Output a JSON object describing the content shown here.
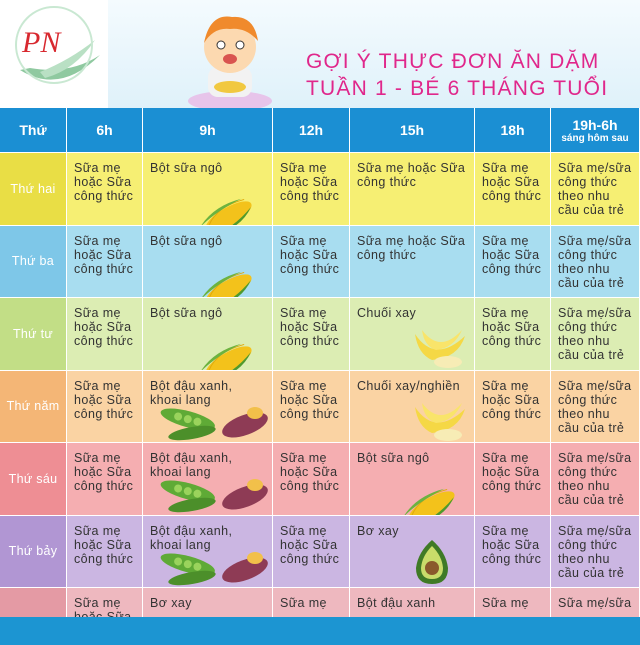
{
  "header": {
    "logo": "PN",
    "title_line1": "GỢI Ý THỰC ĐƠN ĂN DẶM",
    "title_line2": "TUẦN 1 - BÉ 6 THÁNG TUỔI"
  },
  "table": {
    "columns": [
      "Thứ",
      "6h",
      "9h",
      "12h",
      "15h",
      "18h",
      "19h-6h"
    ],
    "last_column_note": "sáng hôm sau",
    "rows": [
      {
        "day": "Thứ hai",
        "cells": [
          "Sữa mẹ hoặc Sữa công thức",
          "Bột sữa ngô",
          "Sữa mẹ hoặc Sữa công thức",
          "Sữa mẹ hoặc Sữa công thức",
          "Sữa mẹ hoặc Sữa công thức",
          "Sữa mẹ/sữa công thức theo nhu cầu của trẻ"
        ]
      },
      {
        "day": "Thứ ba",
        "cells": [
          "Sữa mẹ hoặc Sữa công thức",
          "Bột sữa ngô",
          "Sữa mẹ hoặc Sữa công thức",
          "Sữa mẹ hoặc Sữa công thức",
          "Sữa mẹ hoặc Sữa công thức",
          "Sữa mẹ/sữa công thức theo nhu cầu của trẻ"
        ]
      },
      {
        "day": "Thứ tư",
        "cells": [
          "Sữa mẹ hoặc Sữa công thức",
          "Bột sữa ngô",
          "Sữa mẹ hoặc Sữa công thức",
          "Chuối xay",
          "Sữa mẹ hoặc Sữa công thức",
          "Sữa mẹ/sữa công thức theo nhu cầu của trẻ"
        ]
      },
      {
        "day": "Thứ năm",
        "cells": [
          "Sữa mẹ hoặc Sữa công thức",
          "Bột đậu xanh, khoai lang",
          "Sữa mẹ hoặc Sữa công thức",
          "Chuối xay/nghiền",
          "Sữa mẹ hoặc Sữa công thức",
          "Sữa mẹ/sữa công thức theo nhu cầu của trẻ"
        ]
      },
      {
        "day": "Thứ sáu",
        "cells": [
          "Sữa mẹ hoặc Sữa công thức",
          "Bột đậu xanh, khoai lang",
          "Sữa mẹ hoặc Sữa công thức",
          "Bột sữa ngô",
          "Sữa mẹ hoặc Sữa công thức",
          "Sữa mẹ/sữa công thức theo nhu cầu của trẻ"
        ]
      },
      {
        "day": "Thứ bảy",
        "cells": [
          "Sữa mẹ hoặc Sữa công thức",
          "Bột đậu xanh, khoai lang",
          "Sữa mẹ hoặc Sữa công thức",
          "Bơ xay",
          "Sữa mẹ hoặc Sữa công thức",
          "Sữa mẹ/sữa công thức theo nhu cầu của trẻ"
        ]
      },
      {
        "cells": [
          "Sữa mẹ hoặc Sữa",
          "Bơ xay",
          "Sữa mẹ",
          "Bột đậu xanh",
          "Sữa mẹ",
          "Sữa mẹ/sữa"
        ]
      }
    ]
  }
}
